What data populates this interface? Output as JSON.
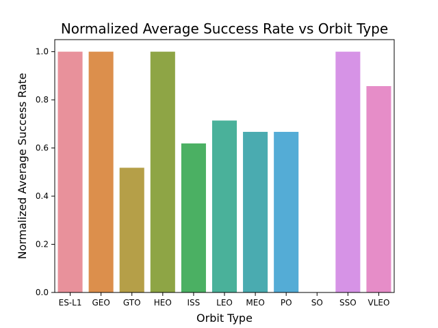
{
  "chart_data": {
    "type": "bar",
    "title": "Normalized Average Success Rate vs Orbit Type",
    "xlabel": "Orbit Type",
    "ylabel": "Normalized Average Success Rate",
    "categories": [
      "ES-L1",
      "GEO",
      "GTO",
      "HEO",
      "ISS",
      "LEO",
      "MEO",
      "PO",
      "SO",
      "SSO",
      "VLEO"
    ],
    "values": [
      1.0,
      1.0,
      0.518,
      1.0,
      0.619,
      0.714,
      0.667,
      0.667,
      0.0,
      1.0,
      0.857
    ],
    "colors": [
      "#e8919b",
      "#dc8f4c",
      "#b59f48",
      "#8ea545",
      "#4bb063",
      "#4ab19a",
      "#4aabb0",
      "#54acd6",
      "#a8a8ee",
      "#d693e6",
      "#e68dc8"
    ],
    "ylim": [
      0,
      1.05
    ],
    "yticks": [
      0.0,
      0.2,
      0.4,
      0.6,
      0.8,
      1.0
    ],
    "ytick_labels": [
      "0.0",
      "0.2",
      "0.4",
      "0.6",
      "0.8",
      "1.0"
    ],
    "grid": false,
    "legend": "none"
  }
}
